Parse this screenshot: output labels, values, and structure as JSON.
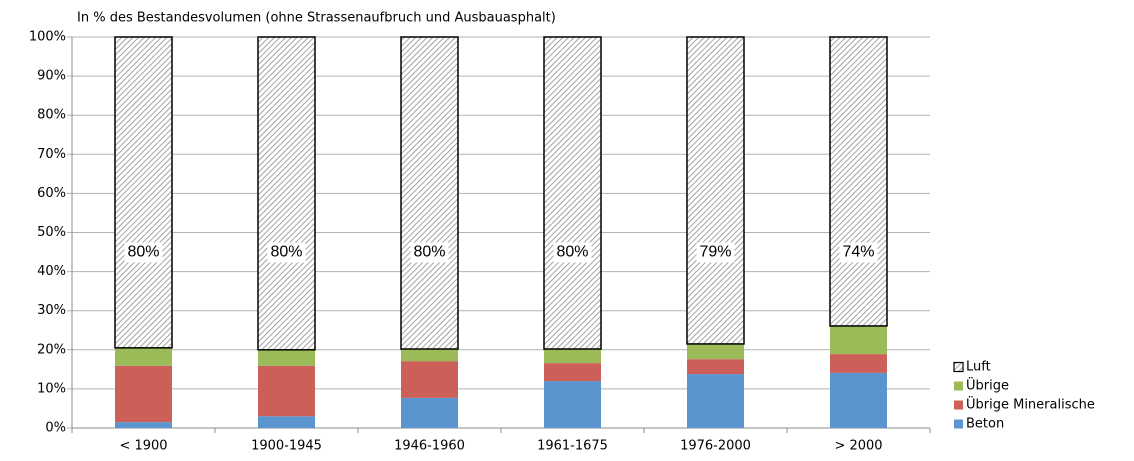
{
  "chart_data": {
    "type": "stacked_bar",
    "title": "In % des Bestandesvolumen (ohne Strassenaufbruch und Ausbauasphalt)",
    "categories": [
      "< 1900",
      "1900-1945",
      "1946-1960",
      "1961-1675",
      "1976-2000",
      "> 2000"
    ],
    "series": [
      {
        "name": "Beton",
        "color": "#5b95cf",
        "values": [
          1.5,
          3.0,
          7.7,
          12.0,
          13.8,
          14.1
        ]
      },
      {
        "name": "Übrige Mineralische",
        "color": "#cd5f59",
        "values": [
          14.4,
          12.9,
          9.4,
          4.6,
          3.8,
          4.8
        ]
      },
      {
        "name": "Übrige",
        "color": "#9bbb59",
        "values": [
          4.6,
          4.1,
          3.1,
          3.6,
          3.9,
          7.2
        ]
      },
      {
        "name": "Luft",
        "color": "#8c8c8c",
        "hatch": true,
        "values": [
          79.5,
          80.0,
          79.8,
          79.8,
          78.5,
          73.9
        ],
        "value_labels": [
          "80%",
          "80%",
          "80%",
          "80%",
          "79%",
          "74%"
        ]
      }
    ],
    "ylim": [
      0,
      100
    ],
    "yticks": [
      {
        "value": 0,
        "label": "0%"
      },
      {
        "value": 10,
        "label": "10%"
      },
      {
        "value": 20,
        "label": "20%"
      },
      {
        "value": 30,
        "label": "30%"
      },
      {
        "value": 40,
        "label": "40%"
      },
      {
        "value": 50,
        "label": "50%"
      },
      {
        "value": 60,
        "label": "60%"
      },
      {
        "value": 70,
        "label": "70%"
      },
      {
        "value": 80,
        "label": "80%"
      },
      {
        "value": 90,
        "label": "90%"
      },
      {
        "value": 100,
        "label": "100%"
      }
    ],
    "grid": true,
    "legend": "right"
  }
}
